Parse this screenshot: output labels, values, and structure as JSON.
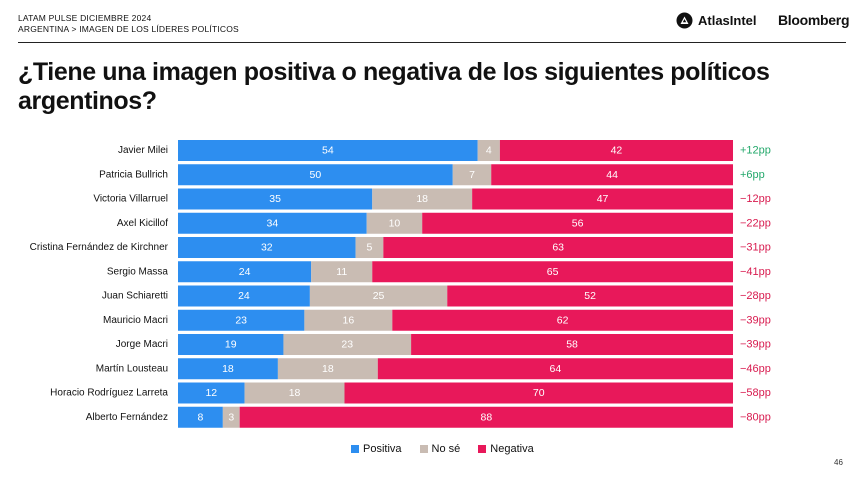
{
  "header": {
    "top_line": "LATAM PULSE DICIEMBRE 2024",
    "sub_line": "ARGENTINA > IMAGEN DE LOS LÍDERES POLÍTICOS",
    "atlas_logo_text": "AtlasIntel",
    "bloomberg_logo_text": "Bloomberg"
  },
  "title": "¿Tiene una imagen positiva o negativa de los siguientes políticos argentinos?",
  "page_number": "46",
  "colors": {
    "positive": "#2d8ef0",
    "unsure": "#c9bcb3",
    "negative": "#e8185a",
    "positive_net": "#23a86b",
    "negative_net": "#d81b4f"
  },
  "chart_data": {
    "type": "bar",
    "orientation": "horizontal",
    "stacked": true,
    "categories": [
      "Javier Milei",
      "Patricia Bullrich",
      "Victoria Villarruel",
      "Axel Kicillof",
      "Cristina Fernández de Kirchner",
      "Sergio Massa",
      "Juan Schiaretti",
      "Mauricio Macri",
      "Jorge Macri",
      "Martín Lousteau",
      "Horacio Rodríguez Larreta",
      "Alberto Fernández"
    ],
    "series": [
      {
        "name": "Positiva",
        "values": [
          54,
          50,
          35,
          34,
          32,
          24,
          24,
          23,
          19,
          18,
          12,
          8
        ]
      },
      {
        "name": "No sé",
        "values": [
          4,
          7,
          18,
          10,
          5,
          11,
          25,
          16,
          23,
          18,
          18,
          3
        ]
      },
      {
        "name": "Negativa",
        "values": [
          42,
          44,
          47,
          56,
          63,
          65,
          52,
          62,
          58,
          64,
          70,
          88
        ]
      }
    ],
    "net_labels": [
      "+12pp",
      "+6pp",
      "−12pp",
      "−22pp",
      "−31pp",
      "−41pp",
      "−28pp",
      "−39pp",
      "−39pp",
      "−46pp",
      "−58pp",
      "−80pp"
    ],
    "legend": [
      "Positiva",
      "No sé",
      "Negativa"
    ],
    "legend_position": "bottom",
    "xlim": [
      0,
      100
    ],
    "grid": false
  }
}
